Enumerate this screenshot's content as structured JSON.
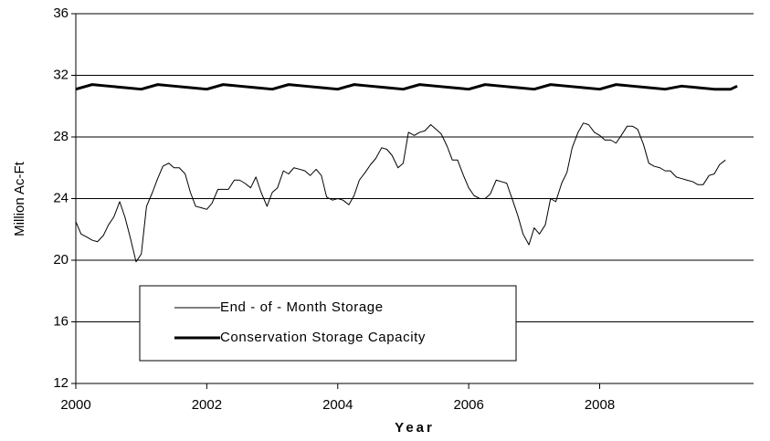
{
  "chart_data": {
    "type": "line",
    "xlabel": "Year",
    "ylabel": "Million Ac-Ft",
    "xlim": [
      2000,
      2010.35
    ],
    "xticks": [
      2000,
      2002,
      2004,
      2006,
      2008
    ],
    "ylim": [
      12,
      36
    ],
    "yticks": [
      12,
      16,
      20,
      24,
      28,
      32,
      36
    ],
    "grid": true,
    "legend_position": "lower center",
    "series": [
      {
        "name": "End - of - Month Storage",
        "color": "#000000",
        "line_width": 1,
        "x": [
          2000,
          2000.08,
          2000.17,
          2000.25,
          2000.33,
          2000.42,
          2000.5,
          2000.58,
          2000.67,
          2000.75,
          2000.83,
          2000.92,
          2001,
          2001.08,
          2001.17,
          2001.25,
          2001.33,
          2001.42,
          2001.5,
          2001.58,
          2001.67,
          2001.75,
          2001.83,
          2001.92,
          2002,
          2002.08,
          2002.17,
          2002.25,
          2002.33,
          2002.42,
          2002.5,
          2002.58,
          2002.67,
          2002.75,
          2002.83,
          2002.92,
          2003,
          2003.08,
          2003.17,
          2003.25,
          2003.33,
          2003.42,
          2003.5,
          2003.58,
          2003.67,
          2003.75,
          2003.83,
          2003.92,
          2004,
          2004.08,
          2004.17,
          2004.25,
          2004.33,
          2004.42,
          2004.5,
          2004.58,
          2004.67,
          2004.75,
          2004.83,
          2004.92,
          2005,
          2005.08,
          2005.17,
          2005.25,
          2005.33,
          2005.42,
          2005.5,
          2005.58,
          2005.67,
          2005.75,
          2005.83,
          2005.92,
          2006,
          2006.08,
          2006.17,
          2006.25,
          2006.33,
          2006.42,
          2006.5,
          2006.58,
          2006.67,
          2006.75,
          2006.83,
          2006.92,
          2007,
          2007.08,
          2007.17,
          2007.25,
          2007.33,
          2007.42,
          2007.5,
          2007.58,
          2007.67,
          2007.75,
          2007.83,
          2007.92,
          2008,
          2008.08,
          2008.17,
          2008.25,
          2008.33,
          2008.42,
          2008.5,
          2008.58,
          2008.67,
          2008.75,
          2008.83,
          2008.92,
          2009,
          2009.08,
          2009.17,
          2009.25,
          2009.33,
          2009.42,
          2009.5,
          2009.58,
          2009.67,
          2009.75,
          2009.83,
          2009.92
        ],
        "values": [
          22.5,
          21.7,
          21.5,
          21.3,
          21.2,
          21.6,
          22.3,
          22.8,
          23.8,
          22.8,
          21.5,
          19.9,
          20.4,
          23.5,
          24.4,
          25.3,
          26.1,
          26.3,
          26.0,
          26.0,
          25.6,
          24.4,
          23.5,
          23.4,
          23.3,
          23.7,
          24.6,
          24.6,
          24.6,
          25.2,
          25.2,
          25.0,
          24.7,
          25.4,
          24.4,
          23.5,
          24.4,
          24.7,
          25.8,
          25.6,
          26.0,
          25.9,
          25.8,
          25.5,
          25.9,
          25.5,
          24.1,
          23.9,
          24.0,
          23.9,
          23.6,
          24.2,
          25.2,
          25.7,
          26.2,
          26.6,
          27.3,
          27.2,
          26.8,
          26.0,
          26.3,
          28.3,
          28.1,
          28.3,
          28.4,
          28.8,
          28.5,
          28.2,
          27.4,
          26.5,
          26.5,
          25.5,
          24.7,
          24.2,
          24.0,
          24.0,
          24.3,
          25.2,
          25.1,
          25.0,
          23.9,
          22.9,
          21.7,
          21.0,
          22.1,
          21.7,
          22.3,
          24.0,
          23.8,
          25.0,
          25.7,
          27.3,
          28.3,
          28.9,
          28.8,
          28.3,
          28.1,
          27.8,
          27.8,
          27.6,
          28.1,
          28.7,
          28.7,
          28.5,
          27.5,
          26.3,
          26.1,
          26.0,
          25.8,
          25.8,
          25.4,
          25.3,
          25.2,
          25.1,
          24.9,
          24.9,
          25.5,
          25.6,
          26.2,
          26.5
        ]
      },
      {
        "name": "Conservation Storage Capacity",
        "color": "#000000",
        "line_width": 3,
        "x": [
          2000,
          2000.25,
          2000.5,
          2000.75,
          2001,
          2001.25,
          2001.5,
          2001.75,
          2002,
          2002.25,
          2002.5,
          2002.75,
          2003,
          2003.25,
          2003.5,
          2003.75,
          2004,
          2004.25,
          2004.5,
          2004.75,
          2005,
          2005.25,
          2005.5,
          2005.75,
          2006,
          2006.25,
          2006.5,
          2006.75,
          2007,
          2007.25,
          2007.5,
          2007.75,
          2008,
          2008.25,
          2008.5,
          2008.75,
          2009,
          2009.25,
          2009.5,
          2009.75,
          2010,
          2010.1
        ],
        "values": [
          31.1,
          31.4,
          31.3,
          31.2,
          31.1,
          31.4,
          31.3,
          31.2,
          31.1,
          31.4,
          31.3,
          31.2,
          31.1,
          31.4,
          31.3,
          31.2,
          31.1,
          31.4,
          31.3,
          31.2,
          31.1,
          31.4,
          31.3,
          31.2,
          31.1,
          31.4,
          31.3,
          31.2,
          31.1,
          31.4,
          31.3,
          31.2,
          31.1,
          31.4,
          31.3,
          31.2,
          31.1,
          31.3,
          31.2,
          31.1,
          31.1,
          31.3
        ]
      }
    ]
  }
}
